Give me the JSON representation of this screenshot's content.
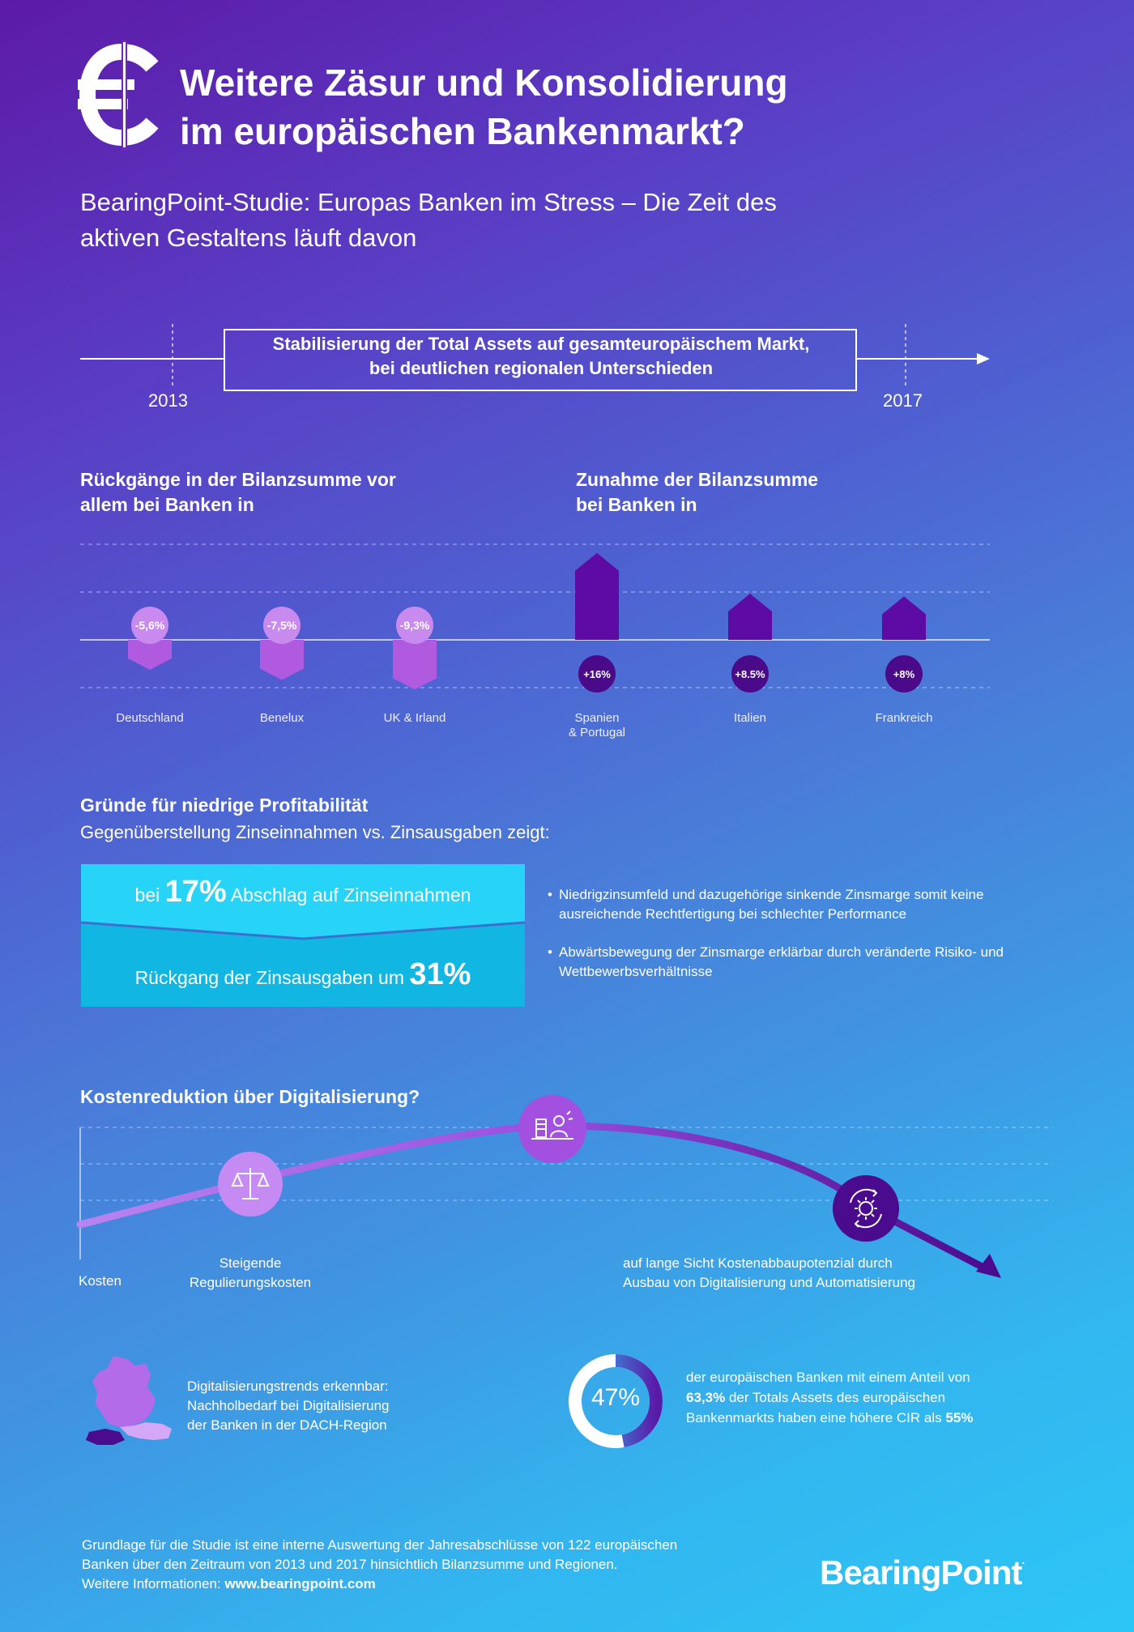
{
  "header": {
    "title_line1": "Weitere Zäsur und Konsolidierung",
    "title_line2": "im europäischen Bankenmarkt?",
    "subtitle": "BearingPoint-Studie: Europas Banken im Stress – Die Zeit des aktiven Gestaltens läuft davon"
  },
  "timeline": {
    "start_year": "2013",
    "end_year": "2017",
    "box_line1": "Stabilisierung der Total Assets auf gesamteuropäischem Markt,",
    "box_line2": "bei deutlichen regionalen Unterschieden"
  },
  "changes": {
    "decline_heading_line1": "Rückgänge in der Bilanzsumme vor",
    "decline_heading_line2": "allem bei Banken in",
    "increase_heading_line1": "Zunahme der Bilanzsumme",
    "increase_heading_line2": "bei Banken in",
    "declines": [
      {
        "label": "-5,6%",
        "region": "Deutschland",
        "value": -5.6
      },
      {
        "label": "-7,5%",
        "region": "Benelux",
        "value": -7.5
      },
      {
        "label": "-9,3%",
        "region": "UK & Irland",
        "value": -9.3
      }
    ],
    "increases": [
      {
        "label": "+16%",
        "region_line1": "Spanien",
        "region_line2": "& Portugal",
        "value": 16
      },
      {
        "label": "+8.5%",
        "region_line1": "Italien",
        "region_line2": "",
        "value": 8.5
      },
      {
        "label": "+8%",
        "region_line1": "Frankreich",
        "region_line2": "",
        "value": 8
      }
    ]
  },
  "profitability": {
    "heading": "Gründe für niedrige Profitabilität",
    "subheading": "Gegenüberstellung Zinseinnahmen vs. Zinsausgaben zeigt:",
    "box1_prefix": "bei",
    "box1_value": "17%",
    "box1_suffix": "Abschlag auf Zinseinnahmen",
    "box2_prefix": "Rückgang der Zinsausgaben um",
    "box2_value": "31%",
    "bullet1": "Niedrigzinsumfeld und dazugehörige sinkende Zinsmarge somit keine ausreichende Rechtfertigung bei schlechter Performance",
    "bullet2": "Abwärtsbewegung der Zinsmarge erklärbar durch veränderte Risiko- und Wettbewerbsverhältnisse"
  },
  "costs": {
    "heading": "Kostenreduktion über Digitalisierung?",
    "axis_label": "Kosten",
    "label_left_line1": "Steigende",
    "label_left_line2": "Regulierungskosten",
    "label_right_line1": "auf lange Sicht Kostenabbaupotenzial durch",
    "label_right_line2": "Ausbau von Digitalisierung und Automatisierung"
  },
  "dach": {
    "line1": "Digitalisierungstrends erkennbar:",
    "line2": "Nachholbedarf bei Digitalisierung",
    "line3": "der Banken in der DACH-Region"
  },
  "cir": {
    "percent_label": "47%",
    "percent_value": 47,
    "line1": "der europäischen Banken mit einem Anteil von",
    "line2_bold": "63,3%",
    "line2_rest": "der Totals Assets des europäischen",
    "line3_rest": "Bankenmarkts haben eine höhere CIR als",
    "line3_bold": "55%"
  },
  "footer": {
    "line1": "Grundlage für die Studie ist eine interne Auswertung der Jahresabschlüsse von 122 europäischen",
    "line2": "Banken über den Zeitraum von 2013 und 2017 hinsichtlich Bilanzsumme und Regionen.",
    "line3_prefix": "Weitere Informationen:",
    "link": "www.bearingpoint.com",
    "brand": "BearingPoint"
  },
  "colors": {
    "decline_bar": "#b05ae0",
    "increase_bar": "#5e0aa4",
    "light_pill": "#c98af0",
    "dark_pill": "#4a0a8a",
    "cyan_box1": "#27d3f6",
    "cyan_box2": "#12b6e2"
  },
  "icons": [
    "euro-icon",
    "scales-icon",
    "desk-worker-icon",
    "gear-cycle-icon",
    "dach-map-icon",
    "donut-icon"
  ]
}
